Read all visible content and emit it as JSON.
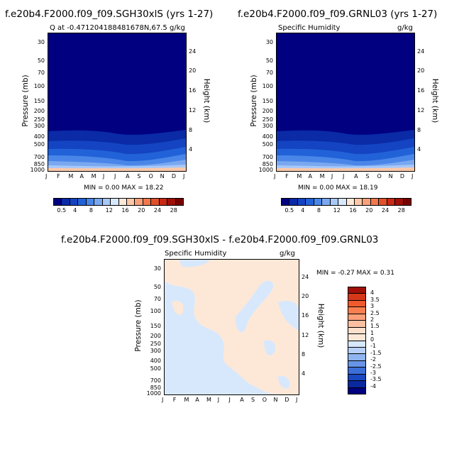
{
  "left_panel": {
    "title": "f.e20b4.F2000.f09_f09.SGH30xlS (yrs 1-27)",
    "subtitle_left": "Q at -0.471204188481678N,67.5",
    "subtitle_right": "g/kg",
    "ylabel": "Pressure (mb)",
    "ylabel_right": "Height (km)",
    "stats": "MIN =    0.00 MAX =   18.22"
  },
  "right_panel": {
    "title": "f.e20b4.F2000.f09_f09.GRNL03 (yrs 1-27)",
    "subtitle_left": "Specific Humidity",
    "subtitle_right": "g/kg",
    "ylabel": "Pressure (mb)",
    "ylabel_right": "Height (km)",
    "stats": "MIN =    0.00 MAX =   18.19"
  },
  "diff_panel": {
    "title": "f.e20b4.F2000.f09_f09.SGH30xlS - f.e20b4.F2000.f09_f09.GRNL03",
    "subtitle_left": "Specific Humidity",
    "subtitle_right": "g/kg",
    "ylabel": "Pressure (mb)",
    "ylabel_right": "Height (km)",
    "stats": "MIN =   -0.27 MAX =    0.31"
  },
  "axes": {
    "months": [
      "J",
      "F",
      "M",
      "A",
      "M",
      "J",
      "J",
      "A",
      "S",
      "O",
      "N",
      "D",
      "J"
    ],
    "pressure_ticks": [
      "30",
      "50",
      "70",
      "100",
      "150",
      "200",
      "250",
      "300",
      "400",
      "500",
      "700",
      "850",
      "1000"
    ],
    "height_ticks": [
      "24",
      "20",
      "16",
      "12",
      "8",
      "4"
    ]
  },
  "colorbar_abs": {
    "labels": [
      "0.5",
      "4",
      "8",
      "12",
      "16",
      "20",
      "24",
      "28"
    ],
    "colors": [
      "#000080",
      "#0a2aa6",
      "#1444c2",
      "#2262d8",
      "#4a86e8",
      "#7aa8f0",
      "#a8c8f8",
      "#d8e8fc",
      "#fde8d8",
      "#fcc8a8",
      "#f8a07a",
      "#f0784c",
      "#e0502a",
      "#c82814",
      "#a01008",
      "#780000"
    ]
  },
  "colorbar_diff": {
    "labels": [
      "4",
      "3.5",
      "3",
      "2.5",
      "2",
      "1.5",
      "1",
      "0",
      "-1",
      "-1.5",
      "-2",
      "-2.5",
      "-3",
      "-3.5",
      "-4"
    ],
    "colors": [
      "#a01008",
      "#d43818",
      "#f05a2c",
      "#f88050",
      "#fca07a",
      "#fcc0a0",
      "#fde0cc",
      "#fde8d8",
      "#d8e8fc",
      "#b8d0f8",
      "#90b4f0",
      "#6894e8",
      "#3c6ed8",
      "#1a48c0",
      "#0a28a0",
      "#000080"
    ]
  },
  "chart_data": [
    {
      "type": "heatmap",
      "title": "Q at -0.471204188481678N,67.5",
      "x": [
        "J",
        "F",
        "M",
        "A",
        "M",
        "J",
        "J",
        "A",
        "S",
        "O",
        "N",
        "D",
        "J"
      ],
      "ylabel": "Pressure (mb)",
      "min": 0.0,
      "max": 18.22
    },
    {
      "type": "heatmap",
      "title": "Specific Humidity",
      "x": [
        "J",
        "F",
        "M",
        "A",
        "M",
        "J",
        "J",
        "A",
        "S",
        "O",
        "N",
        "D",
        "J"
      ],
      "ylabel": "Pressure (mb)",
      "min": 0.0,
      "max": 18.19
    },
    {
      "type": "heatmap",
      "title": "Specific Humidity",
      "x": [
        "J",
        "F",
        "M",
        "A",
        "M",
        "J",
        "J",
        "A",
        "S",
        "O",
        "N",
        "D",
        "J"
      ],
      "ylabel": "Pressure (mb)",
      "min": -0.27,
      "max": 0.31
    }
  ]
}
